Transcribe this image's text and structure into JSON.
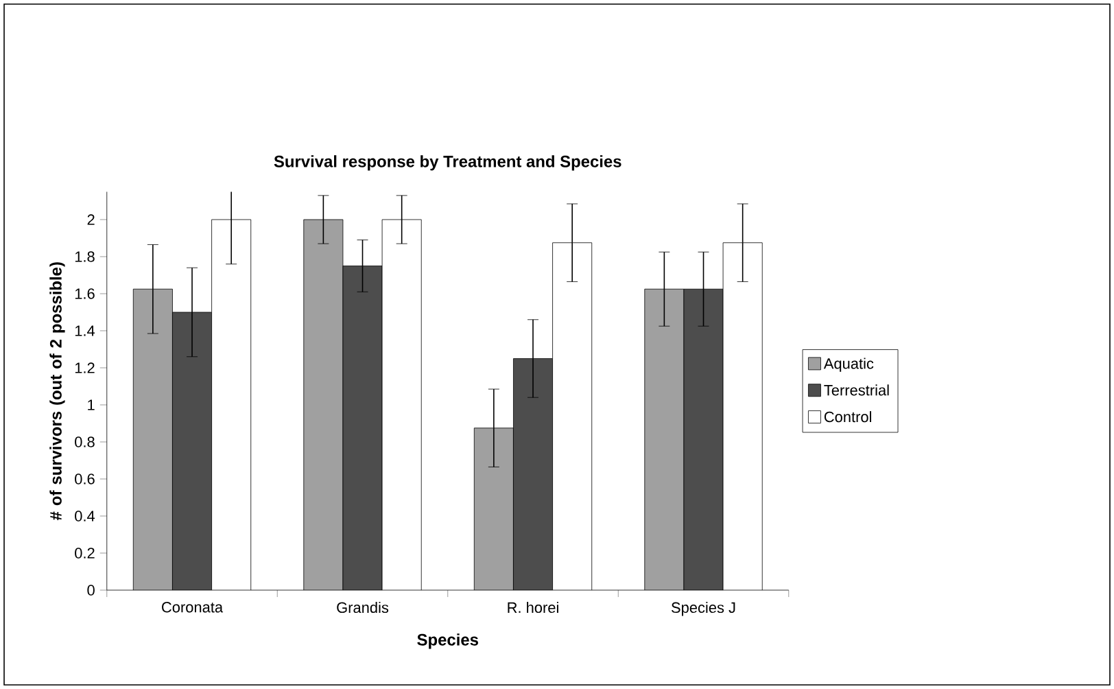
{
  "chart_data": {
    "type": "bar",
    "title": "Survival response by Treatment and Species",
    "xlabel": "Species",
    "ylabel": "# of survivors (out of 2 possible)",
    "categories": [
      "Coronata",
      "Grandis",
      "R. horei",
      "Species J"
    ],
    "series": [
      {
        "name": "Aquatic",
        "color": "#a0a0a0",
        "values": [
          1.625,
          2,
          0.875,
          1.625
        ],
        "errors": [
          0.24,
          0.13,
          0.21,
          0.2
        ]
      },
      {
        "name": "Terrestrial",
        "color": "#4d4d4d",
        "values": [
          1.5,
          1.75,
          1.25,
          1.625
        ],
        "errors": [
          0.24,
          0.14,
          0.21,
          0.2
        ]
      },
      {
        "name": "Control",
        "color": "#ffffff",
        "values": [
          2,
          2,
          1.875,
          1.875
        ],
        "errors": [
          0.24,
          0.13,
          0.21,
          0.21
        ]
      }
    ],
    "ylim": [
      0,
      2.15
    ],
    "yticks": [
      0,
      0.2,
      0.4,
      0.6,
      0.8,
      1,
      1.2,
      1.4,
      1.6,
      1.8,
      2
    ],
    "grid": false,
    "legend": "right"
  }
}
